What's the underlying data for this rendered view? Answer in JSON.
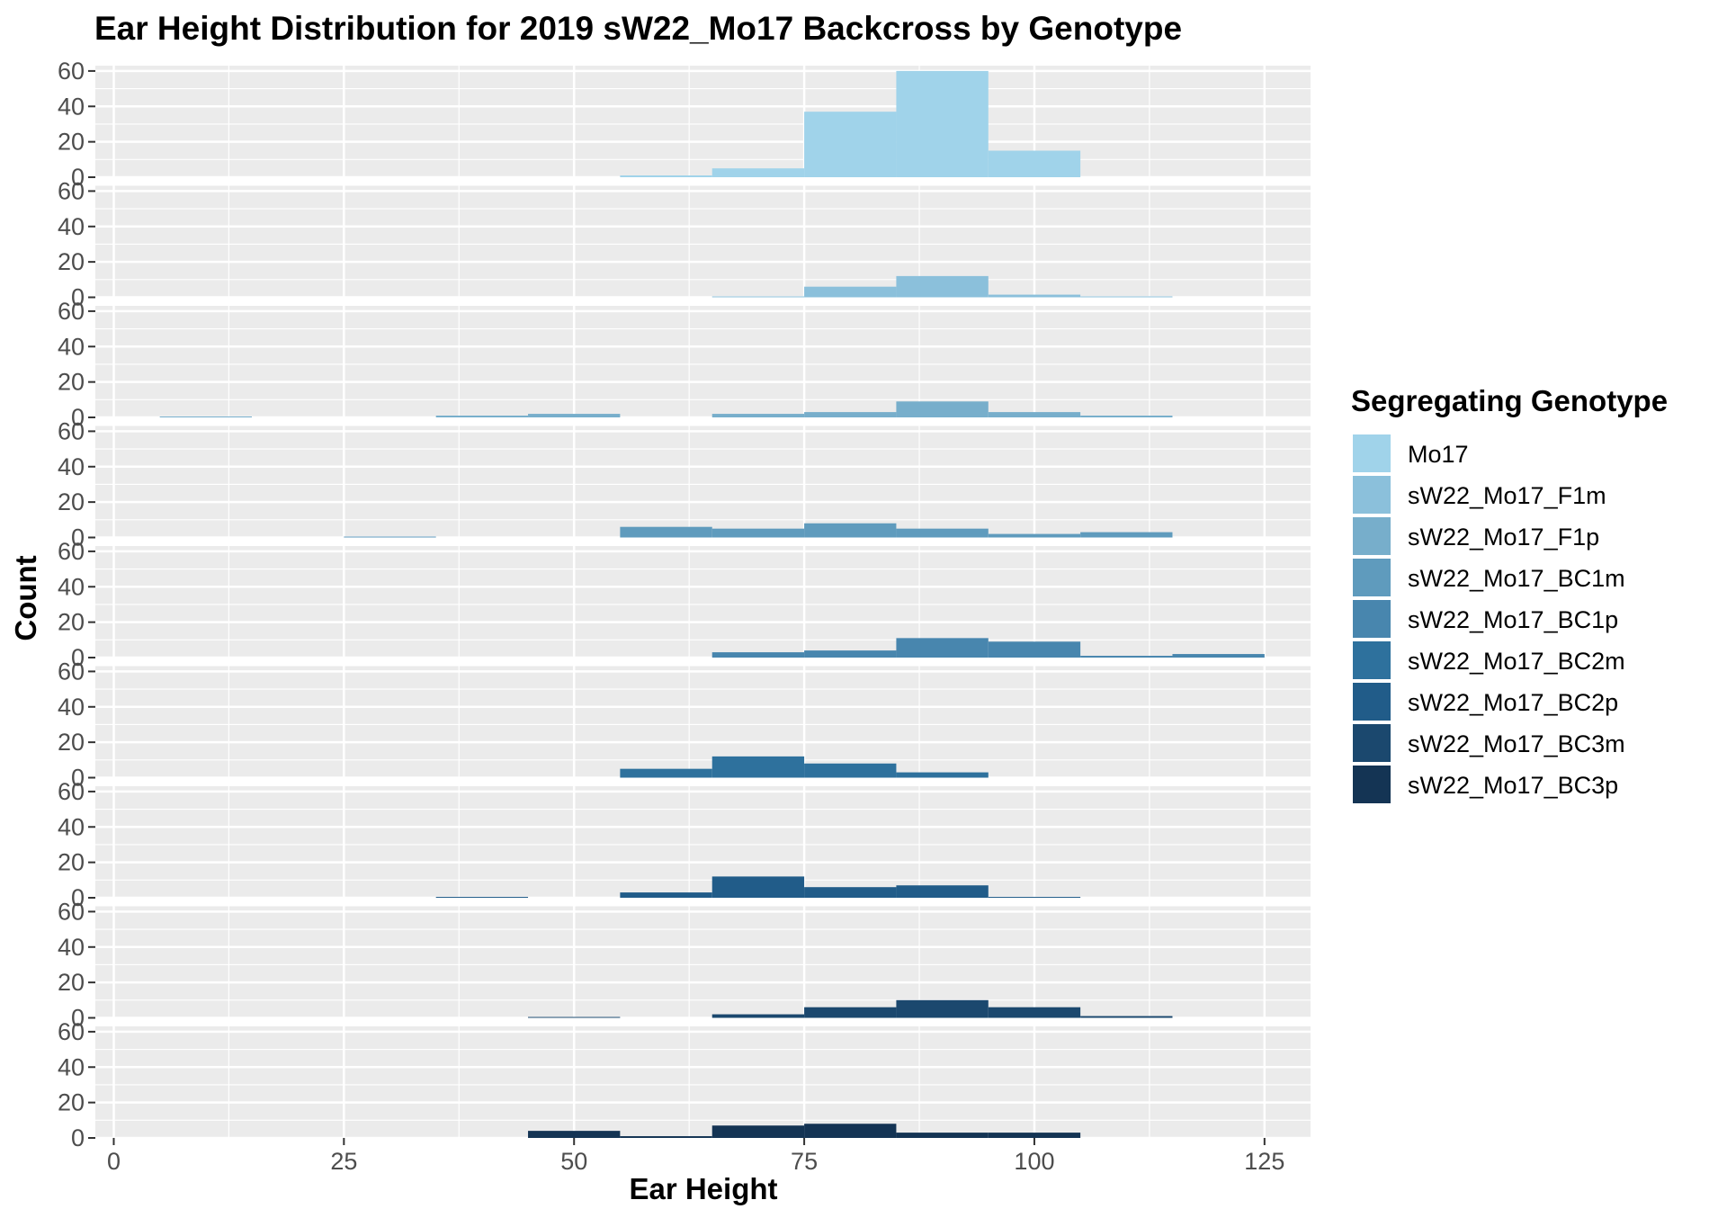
{
  "chart_data": {
    "type": "histogram",
    "title": "Ear Height Distribution for 2019 sW22_Mo17 Backcross by Genotype",
    "xlabel": "Ear Height",
    "ylabel": "Count",
    "xlim": [
      -2,
      130
    ],
    "ylim": [
      0,
      63
    ],
    "x_ticks": [
      0,
      25,
      50,
      75,
      100,
      125
    ],
    "y_ticks": [
      0,
      20,
      40,
      60
    ],
    "bin_width": 10,
    "grid": true,
    "legend": {
      "title": "Segregating Genotype",
      "position": "right"
    },
    "series": [
      {
        "name": "Mo17",
        "color": "#A0D3EA",
        "bins": [
          {
            "x": 60,
            "count": 1
          },
          {
            "x": 70,
            "count": 5
          },
          {
            "x": 80,
            "count": 37
          },
          {
            "x": 90,
            "count": 60
          },
          {
            "x": 100,
            "count": 15
          }
        ]
      },
      {
        "name": "sW22_Mo17_F1m",
        "color": "#8BC0DB",
        "bins": [
          {
            "x": 70,
            "count": 0.5
          },
          {
            "x": 80,
            "count": 6
          },
          {
            "x": 90,
            "count": 12
          },
          {
            "x": 100,
            "count": 1.5
          },
          {
            "x": 110,
            "count": 0.5
          }
        ]
      },
      {
        "name": "sW22_Mo17_F1p",
        "color": "#77AECB",
        "bins": [
          {
            "x": 10,
            "count": 0.5
          },
          {
            "x": 40,
            "count": 1
          },
          {
            "x": 50,
            "count": 2
          },
          {
            "x": 70,
            "count": 2
          },
          {
            "x": 80,
            "count": 3
          },
          {
            "x": 90,
            "count": 9
          },
          {
            "x": 100,
            "count": 3
          },
          {
            "x": 110,
            "count": 1
          }
        ]
      },
      {
        "name": "sW22_Mo17_BC1m",
        "color": "#5F9BBD",
        "bins": [
          {
            "x": 30,
            "count": 0.5
          },
          {
            "x": 60,
            "count": 6
          },
          {
            "x": 70,
            "count": 5
          },
          {
            "x": 80,
            "count": 8
          },
          {
            "x": 90,
            "count": 5
          },
          {
            "x": 100,
            "count": 2
          },
          {
            "x": 110,
            "count": 3
          }
        ]
      },
      {
        "name": "sW22_Mo17_BC1p",
        "color": "#4886AE",
        "bins": [
          {
            "x": 70,
            "count": 3
          },
          {
            "x": 80,
            "count": 4
          },
          {
            "x": 90,
            "count": 11
          },
          {
            "x": 100,
            "count": 9
          },
          {
            "x": 110,
            "count": 1
          },
          {
            "x": 120,
            "count": 2
          }
        ]
      },
      {
        "name": "sW22_Mo17_BC2m",
        "color": "#2E719D",
        "bins": [
          {
            "x": 60,
            "count": 5
          },
          {
            "x": 70,
            "count": 12
          },
          {
            "x": 80,
            "count": 8
          },
          {
            "x": 90,
            "count": 3
          }
        ]
      },
      {
        "name": "sW22_Mo17_BC2p",
        "color": "#215C89",
        "bins": [
          {
            "x": 40,
            "count": 0.5
          },
          {
            "x": 60,
            "count": 3
          },
          {
            "x": 70,
            "count": 12
          },
          {
            "x": 80,
            "count": 6
          },
          {
            "x": 90,
            "count": 7
          },
          {
            "x": 100,
            "count": 0.5
          }
        ]
      },
      {
        "name": "sW22_Mo17_BC3m",
        "color": "#1B486E",
        "bins": [
          {
            "x": 50,
            "count": 0.5
          },
          {
            "x": 70,
            "count": 2
          },
          {
            "x": 80,
            "count": 6
          },
          {
            "x": 90,
            "count": 10
          },
          {
            "x": 100,
            "count": 6
          },
          {
            "x": 110,
            "count": 1
          }
        ]
      },
      {
        "name": "sW22_Mo17_BC3p",
        "color": "#143454",
        "bins": [
          {
            "x": 50,
            "count": 4
          },
          {
            "x": 60,
            "count": 1
          },
          {
            "x": 70,
            "count": 7
          },
          {
            "x": 80,
            "count": 8
          },
          {
            "x": 90,
            "count": 3
          },
          {
            "x": 100,
            "count": 3
          }
        ]
      }
    ]
  }
}
